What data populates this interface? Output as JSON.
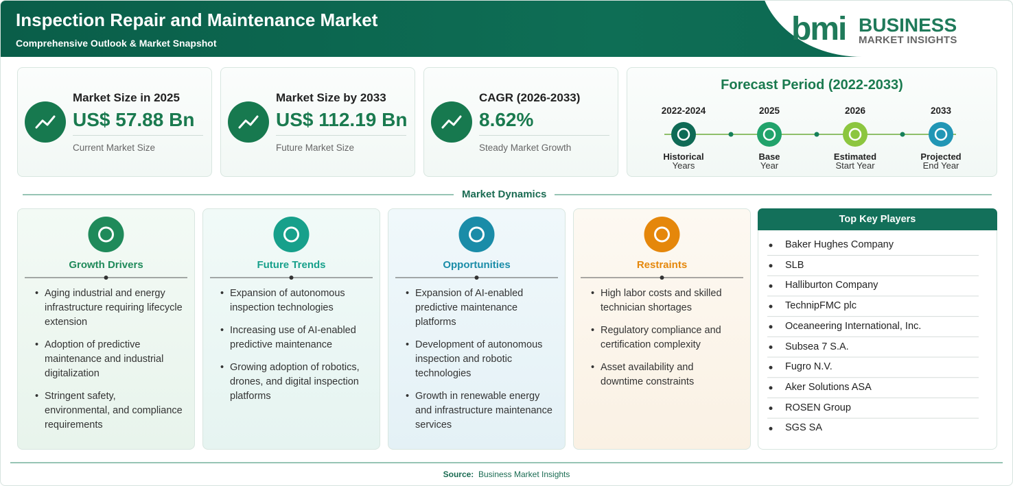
{
  "header": {
    "title": "Inspection Repair and Maintenance Market",
    "subtitle": "Comprehensive Outlook & Market Snapshot",
    "logo": {
      "mark": "bmi",
      "brand": "BUSINESS",
      "tagline": "MARKET INSIGHTS"
    }
  },
  "stats": [
    {
      "label": "Market Size in 2025",
      "value": "US$ 57.88 Bn",
      "note": "Current Market Size"
    },
    {
      "label": "Market Size by 2033",
      "value": "US$ 112.19 Bn",
      "note": "Future Market Size"
    },
    {
      "label": "CAGR (2026-2033)",
      "value": "8.62%",
      "note": "Steady Market Growth"
    }
  ],
  "forecast": {
    "title": "Forecast Period (2022-2033)",
    "steps": [
      {
        "period": "2022-2024",
        "label": "Historical",
        "sublabel": "Years"
      },
      {
        "period": "2025",
        "label": "Base",
        "sublabel": "Year"
      },
      {
        "period": "2026",
        "label": "Estimated",
        "sublabel": "Start Year"
      },
      {
        "period": "2033",
        "label": "Projected",
        "sublabel": "End Year"
      }
    ]
  },
  "dynamics": {
    "title": "Market Dynamics",
    "panels": [
      {
        "title": "Growth Drivers",
        "items": [
          "Aging industrial and energy infrastructure requiring lifecycle extension",
          "Adoption of predictive maintenance and industrial digitalization",
          "Stringent safety, environmental, and compliance requirements"
        ]
      },
      {
        "title": "Future Trends",
        "items": [
          "Expansion of autonomous inspection technologies",
          "Increasing use of AI-enabled predictive maintenance",
          "Growing adoption of robotics, drones, and digital inspection platforms"
        ]
      },
      {
        "title": "Opportunities",
        "items": [
          "Expansion of AI-enabled predictive maintenance platforms",
          "Development of autonomous inspection and robotic technologies",
          "Growth in renewable energy and infrastructure maintenance services"
        ]
      },
      {
        "title": "Restraints",
        "items": [
          "High labor costs and skilled technician shortages",
          "Regulatory compliance and certification complexity",
          "Asset availability and downtime constraints"
        ]
      }
    ]
  },
  "players": {
    "title": "Top Key Players",
    "items": [
      "Baker Hughes Company",
      "SLB",
      "Halliburton Company",
      "TechnipFMC plc",
      "Oceaneering International, Inc.",
      "Subsea 7 S.A.",
      "Fugro N.V.",
      "Aker Solutions ASA",
      "ROSEN Group",
      "SGS SA"
    ]
  },
  "source": {
    "label": "Source:",
    "text": "Business Market Insights"
  }
}
